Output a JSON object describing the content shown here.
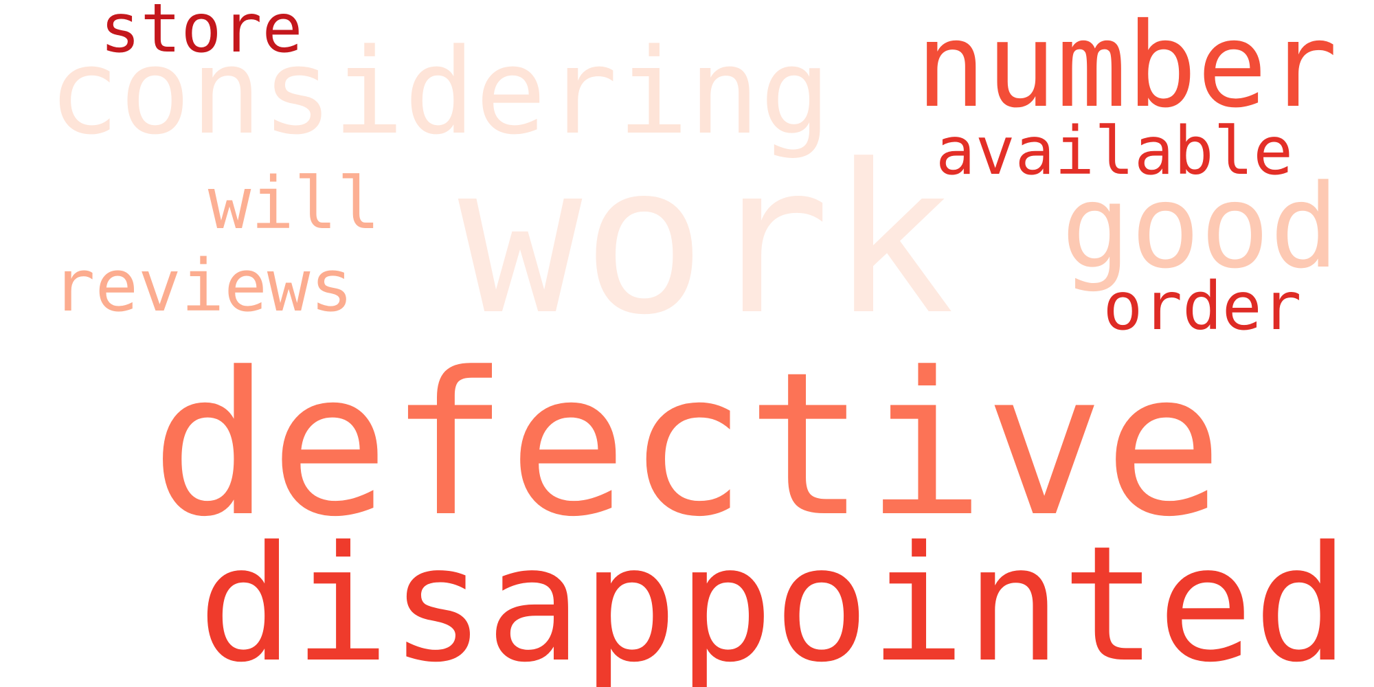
{
  "words": [
    {
      "id": "work",
      "text": "work",
      "color": "#FEE9E0"
    },
    {
      "id": "defective",
      "text": "defective",
      "color": "#FC7356"
    },
    {
      "id": "disappointed",
      "text": "disappointed",
      "color": "#EF3B2C"
    },
    {
      "id": "considering",
      "text": "considering",
      "color": "#FEE4D8"
    },
    {
      "id": "number",
      "text": "number",
      "color": "#F34D37"
    },
    {
      "id": "good",
      "text": "good",
      "color": "#FDC9B3"
    },
    {
      "id": "reviews",
      "text": "reviews",
      "color": "#FCAC8F"
    },
    {
      "id": "available",
      "text": "available",
      "color": "#E32F27"
    },
    {
      "id": "store",
      "text": "store",
      "color": "#C4171C"
    },
    {
      "id": "will",
      "text": "will",
      "color": "#FCAF93"
    },
    {
      "id": "order",
      "text": "order",
      "color": "#DE2B25"
    }
  ]
}
